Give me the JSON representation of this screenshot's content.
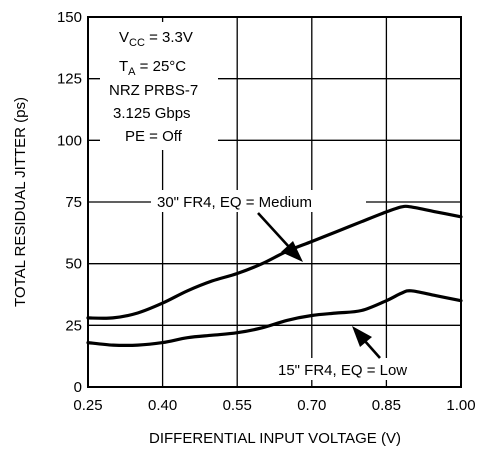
{
  "chart_data": {
    "type": "line",
    "xlabel": "DIFFERENTIAL INPUT VOLTAGE (V)",
    "ylabel": "TOTAL RESIDUAL JITTER (ps)",
    "xlim": [
      0.25,
      1.0
    ],
    "ylim": [
      0,
      150
    ],
    "xticks": [
      "0.25",
      "0.40",
      "0.55",
      "0.70",
      "0.85",
      "1.00"
    ],
    "yticks": [
      "0",
      "25",
      "50",
      "75",
      "100",
      "125",
      "150"
    ],
    "grid": true,
    "conditions": {
      "vcc_prefix": "V",
      "vcc_sub": "CC",
      "vcc_value": " = 3.3V",
      "ta_prefix": "T",
      "ta_sub": "A",
      "ta_value": " = 25°C",
      "line3": "NRZ PRBS-7",
      "line4": "3.125 Gbps",
      "line5": "PE = Off"
    },
    "series": [
      {
        "name": "30\" FR4, EQ = Medium",
        "x": [
          0.25,
          0.3,
          0.35,
          0.4,
          0.45,
          0.5,
          0.55,
          0.6,
          0.65,
          0.7,
          0.75,
          0.8,
          0.85,
          0.88,
          0.9,
          0.95,
          1.0
        ],
        "y": [
          28,
          28,
          30,
          34,
          39,
          43,
          46,
          50,
          55,
          59,
          63,
          67,
          71,
          73,
          73,
          71,
          69
        ]
      },
      {
        "name": "15\" FR4, EQ = Low",
        "x": [
          0.25,
          0.3,
          0.35,
          0.4,
          0.45,
          0.5,
          0.55,
          0.6,
          0.65,
          0.7,
          0.75,
          0.8,
          0.85,
          0.88,
          0.9,
          0.95,
          1.0
        ],
        "y": [
          18,
          17,
          17,
          18,
          20,
          21,
          22,
          24,
          27,
          29,
          30,
          31,
          35,
          38,
          39,
          37,
          35
        ]
      }
    ],
    "annotations": [
      "30\" FR4, EQ = Medium",
      "15\" FR4, EQ = Low"
    ]
  }
}
